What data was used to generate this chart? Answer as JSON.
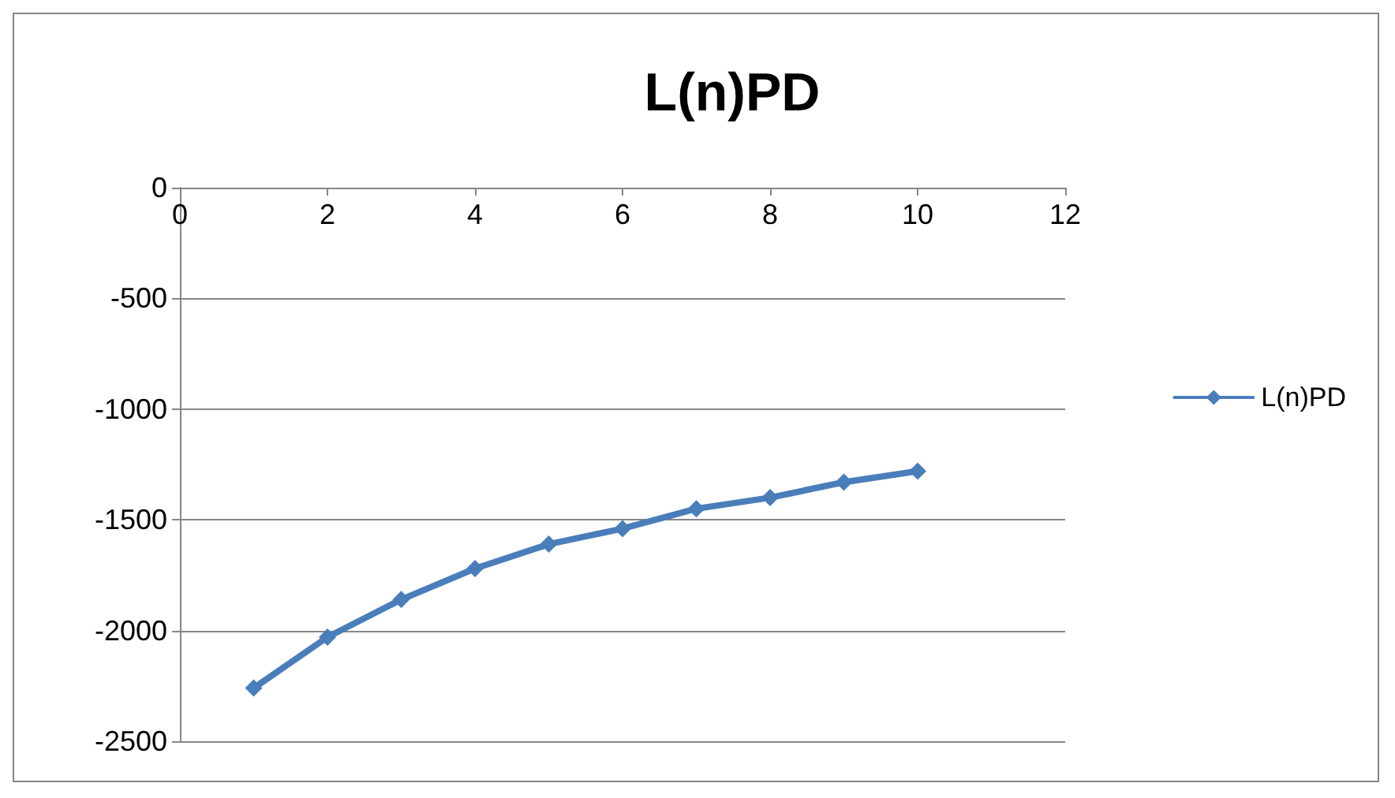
{
  "chart_data": {
    "type": "line",
    "title": "L(n)PD",
    "x": [
      1,
      2,
      3,
      4,
      5,
      6,
      7,
      8,
      9,
      10
    ],
    "series": [
      {
        "name": "L(n)PD",
        "color": "#4a7ebb",
        "values": [
          -2260,
          -2030,
          -1860,
          -1720,
          -1610,
          -1540,
          -1450,
          -1400,
          -1330,
          -1280
        ]
      }
    ],
    "xlim": [
      0,
      12
    ],
    "xticks": [
      0,
      2,
      4,
      6,
      8,
      10,
      12
    ],
    "ylim": [
      -2500,
      0
    ],
    "yticks": [
      -2500,
      -2000,
      -1500,
      -1000,
      -500,
      0
    ],
    "grid": "y",
    "legend": "right",
    "marker": "diamond",
    "line_style": "solid"
  }
}
